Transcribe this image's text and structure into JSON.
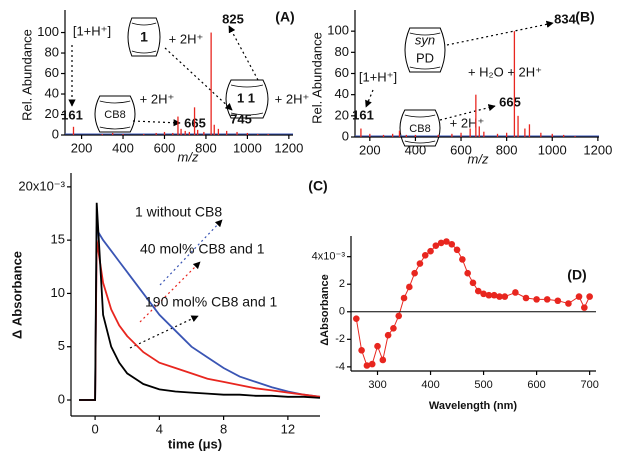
{
  "chart_data": [
    {
      "type": "spectrum",
      "xlabel": "m/z",
      "ylabel": "Rel. Abundance",
      "xlim": [
        120,
        1220
      ],
      "xticks": [
        200,
        400,
        600,
        800,
        1000,
        1200
      ],
      "ylim": [
        0,
        122
      ],
      "yticks": [
        0,
        20,
        40,
        60,
        80,
        100
      ],
      "color": "#e8261f",
      "x": [
        161,
        300,
        350,
        400,
        500,
        560,
        600,
        640,
        665,
        680,
        700,
        720,
        745,
        760,
        790,
        825,
        840,
        860,
        900,
        950,
        1000,
        1050,
        1100
      ],
      "values": [
        8,
        1,
        2,
        1,
        1,
        2,
        3,
        2,
        18,
        6,
        4,
        3,
        27,
        5,
        3,
        100,
        10,
        6,
        4,
        3,
        2,
        1,
        1
      ],
      "annotations": [
        "(A)",
        "[1+H⁺]",
        "161",
        "1",
        "+ 2H⁺",
        "825",
        "CB8",
        "+ 2H⁺",
        "665",
        "745",
        "1 1",
        "+ 2H⁺"
      ]
    },
    {
      "type": "spectrum",
      "xlabel": "m/z",
      "ylabel": "Rel. Abundance",
      "xlim": [
        135,
        1205
      ],
      "xticks": [
        200,
        400,
        600,
        800,
        1000,
        1200
      ],
      "ylim": [
        0,
        120
      ],
      "yticks": [
        0,
        20,
        40,
        60,
        80,
        100
      ],
      "color": "#e8261f",
      "x": [
        161,
        200,
        260,
        300,
        330,
        360,
        400,
        500,
        560,
        600,
        640,
        665,
        680,
        700,
        760,
        800,
        834,
        850,
        880,
        900,
        950,
        1000,
        1050,
        1100
      ],
      "values": [
        8,
        3,
        2,
        3,
        6,
        2,
        2,
        2,
        3,
        4,
        8,
        40,
        10,
        5,
        3,
        4,
        100,
        20,
        8,
        12,
        4,
        3,
        2,
        1
      ],
      "annotations": [
        "(B)",
        "834",
        "syn",
        "PD",
        "+ H₂O + 2H⁺",
        "[1+H⁺]",
        "161",
        "CB8",
        "+ 2H⁺",
        "665"
      ]
    },
    {
      "type": "line",
      "xlabel": "time (μs)",
      "ylabel": "Δ Absorbance",
      "xlim": [
        -1.5,
        14
      ],
      "xticks": [
        0,
        4,
        8,
        12
      ],
      "ylim": [
        -1.5,
        21.3
      ],
      "yticks": [
        0,
        5,
        10,
        15,
        {
          "value": 20,
          "label": "20x10⁻³"
        }
      ],
      "x": [
        -1,
        -0.5,
        0,
        0.1,
        0.5,
        1,
        1.5,
        2,
        3,
        4,
        5,
        6,
        7,
        8,
        9,
        10,
        11,
        12,
        13,
        14
      ],
      "series": [
        {
          "name": "1 without CB8",
          "color": "#3a55b4",
          "values": [
            0,
            0,
            0,
            16,
            15,
            14,
            13,
            12,
            10,
            8,
            6.5,
            5,
            4,
            3,
            2.2,
            1.7,
            1.2,
            0.8,
            0.5,
            0.3
          ]
        },
        {
          "name": "40 mol% CB8 and 1",
          "color": "#e8261f",
          "values": [
            0,
            0,
            0,
            15,
            11,
            8.5,
            7,
            6,
            4.5,
            3.5,
            3,
            2.5,
            2,
            1.7,
            1.4,
            1.1,
            0.9,
            0.7,
            0.5,
            0.3
          ]
        },
        {
          "name": "190 mol% CB8 and 1",
          "color": "#000000",
          "values": [
            0,
            0,
            0,
            18.5,
            8,
            5,
            3.5,
            2.5,
            1.5,
            1,
            0.8,
            0.7,
            0.6,
            0.5,
            0.5,
            0.4,
            0.4,
            0.3,
            0.3,
            0.2
          ]
        }
      ],
      "annotations": [
        "(C)"
      ]
    },
    {
      "type": "line",
      "markers": true,
      "xlabel": "Wavelength (nm)",
      "ylabel": "ΔAbsorbance",
      "xlim": [
        250,
        712
      ],
      "xticks": [
        300,
        400,
        500,
        600,
        700
      ],
      "ylim": [
        -4.3,
        5.5
      ],
      "yticks": [
        -4,
        -2,
        0,
        2,
        {
          "value": 4,
          "label": "4x10⁻³"
        }
      ],
      "x": [
        260,
        270,
        280,
        290,
        300,
        310,
        320,
        330,
        340,
        350,
        360,
        370,
        380,
        390,
        400,
        410,
        420,
        430,
        440,
        450,
        460,
        470,
        480,
        490,
        500,
        510,
        520,
        530,
        540,
        560,
        580,
        600,
        620,
        640,
        660,
        680,
        690,
        700
      ],
      "series": [
        {
          "color": "#e8261f",
          "values": [
            -0.5,
            -2.8,
            -3.9,
            -3.8,
            -2.5,
            -3.5,
            -1.7,
            -1.2,
            -0.3,
            1,
            1.8,
            2.8,
            3.5,
            4.1,
            4.4,
            4.8,
            5,
            5.1,
            4.9,
            4.5,
            3.8,
            2.8,
            2.1,
            1.5,
            1.3,
            1.2,
            1.2,
            1.1,
            1.1,
            1.4,
            1,
            0.9,
            0.9,
            0.8,
            0.6,
            1.1,
            0.3,
            1.1
          ]
        }
      ],
      "annotations": [
        "(D)"
      ]
    }
  ]
}
